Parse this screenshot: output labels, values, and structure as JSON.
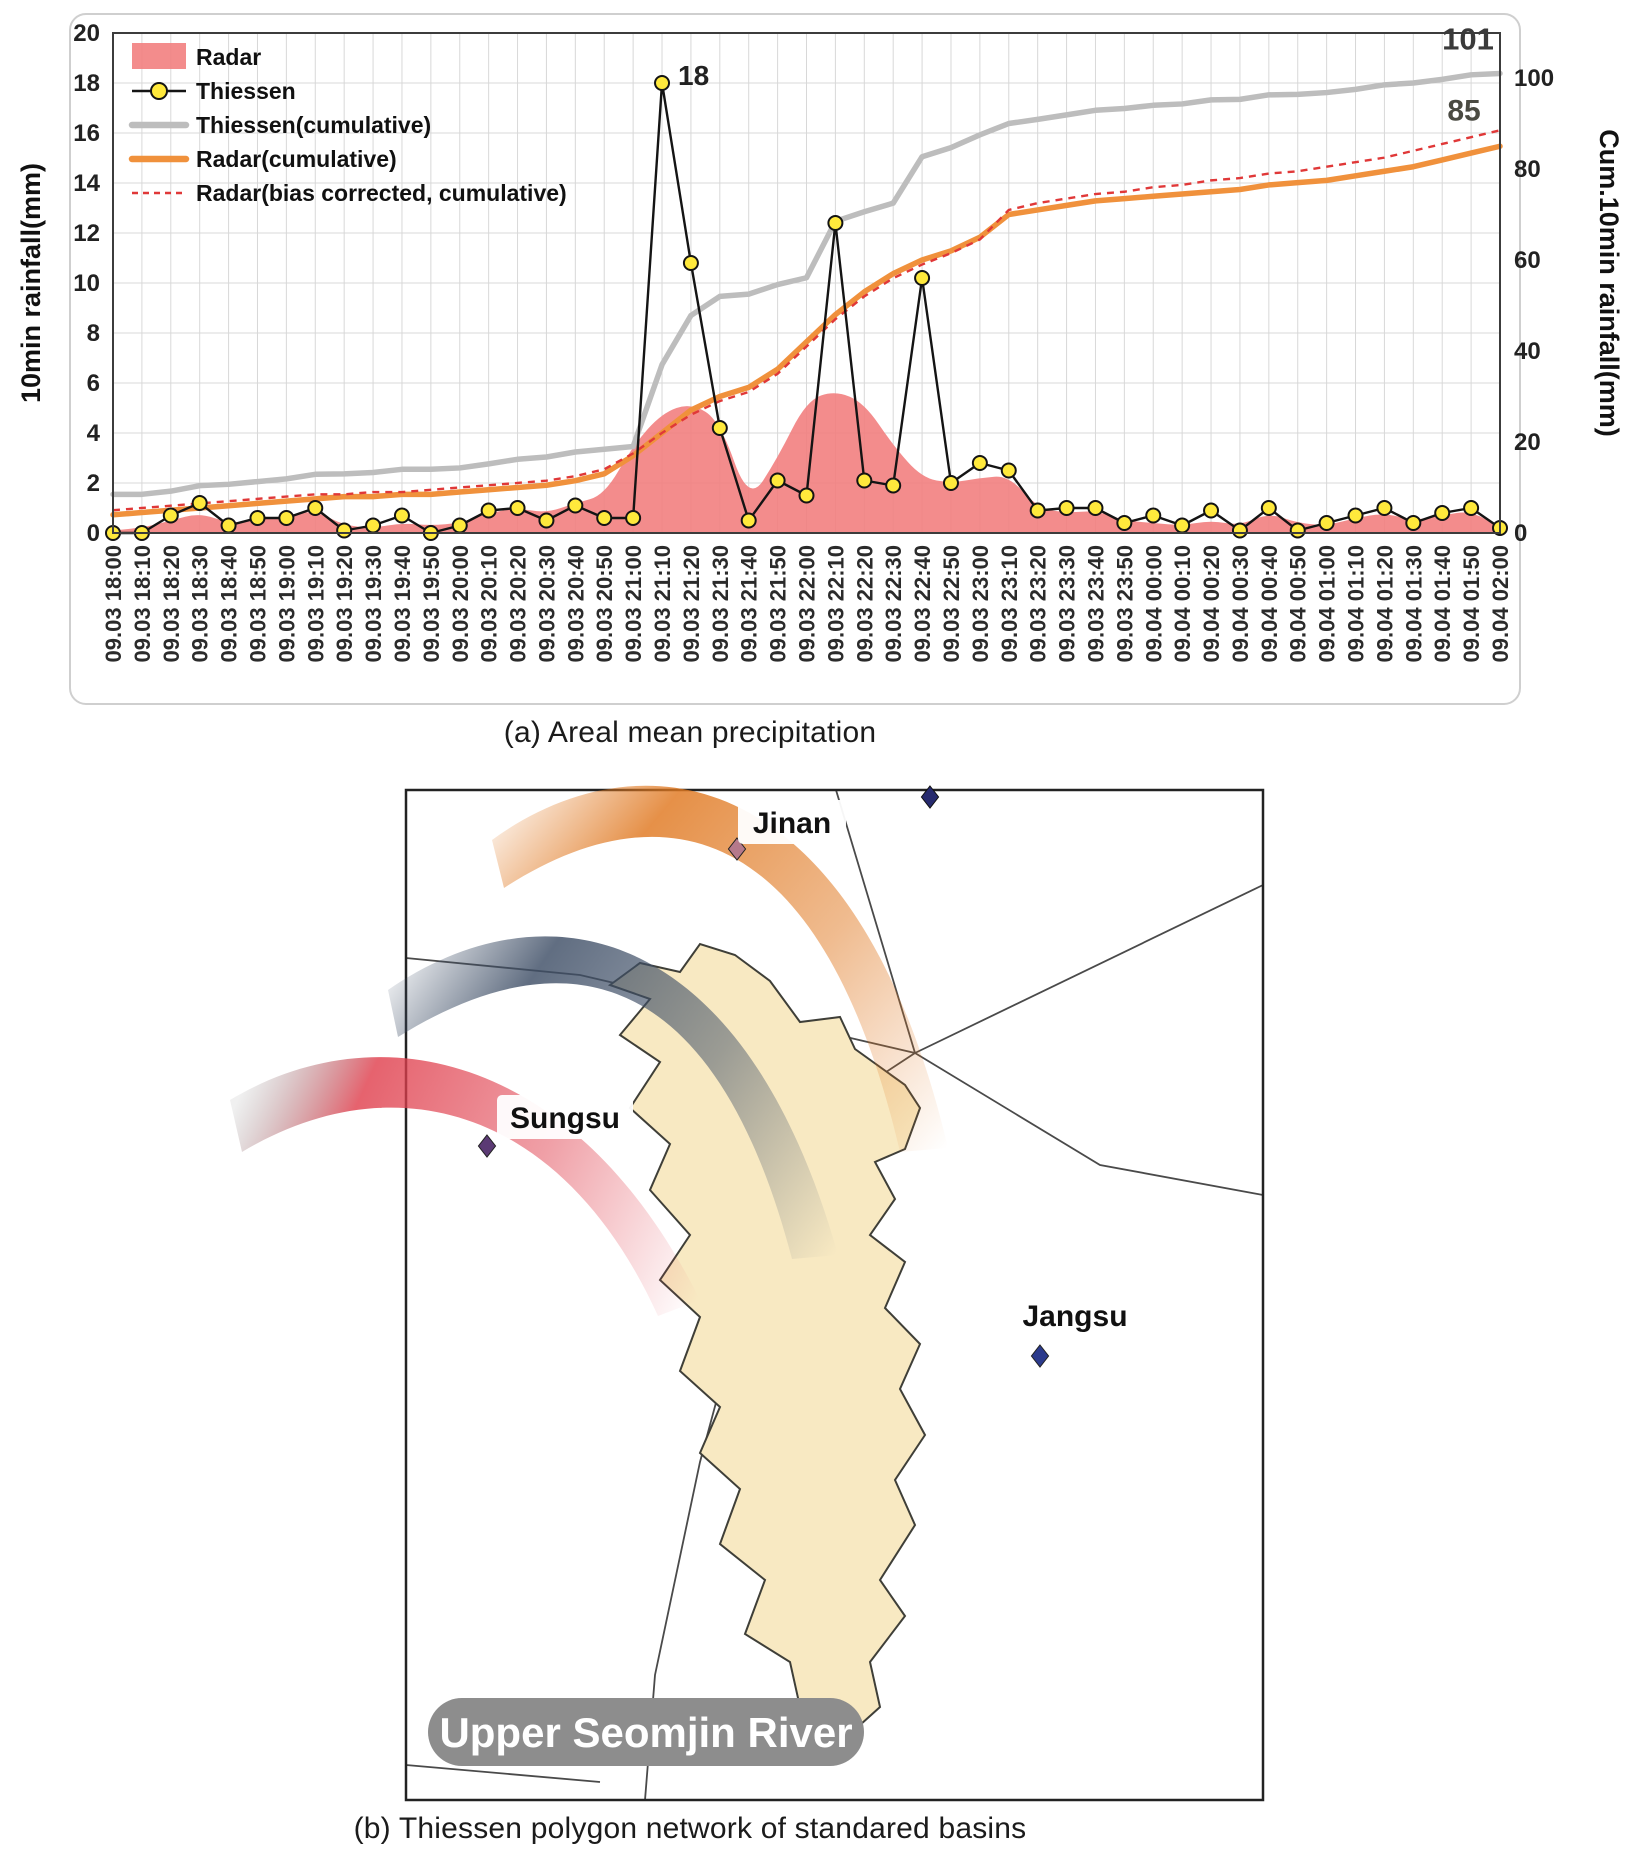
{
  "figure": {
    "caption_a": "(a) Areal mean precipitation",
    "caption_b": "(b) Thiessen polygon network of standared basins"
  },
  "chart_data": {
    "type": "combo",
    "ylabel_left": "10min rainfall(mm)",
    "ylabel_right": "Cum.10min rainfall(mm)",
    "ylim_left": [
      0,
      20
    ],
    "ylim_right": [
      0,
      100
    ],
    "yticks_left": [
      0,
      2,
      4,
      6,
      8,
      10,
      12,
      14,
      16,
      18,
      20
    ],
    "yticks_right": [
      0,
      20,
      40,
      60,
      80,
      100
    ],
    "grid": true,
    "legend_position": "upper-left",
    "categories": [
      "09.03 18:00",
      "09.03 18:10",
      "09.03 18:20",
      "09.03 18:30",
      "09.03 18:40",
      "09.03 18:50",
      "09.03 19:00",
      "09.03 19:10",
      "09.03 19:20",
      "09.03 19:30",
      "09.03 19:40",
      "09.03 19:50",
      "09.03 20:00",
      "09.03 20:10",
      "09.03 20:20",
      "09.03 20:30",
      "09.03 20:40",
      "09.03 20:50",
      "09.03 21:00",
      "09.03 21:10",
      "09.03 21:20",
      "09.03 21:30",
      "09.03 21:40",
      "09.03 21:50",
      "09.03 22:00",
      "09.03 22:10",
      "09.03 22:20",
      "09.03 22:30",
      "09.03 22:40",
      "09.03 22:50",
      "09.03 23:00",
      "09.03 23:10",
      "09.03 23:20",
      "09.03 23:30",
      "09.03 23:40",
      "09.03 23:50",
      "09.04 00:00",
      "09.04 00:10",
      "09.04 00:20",
      "09.04 00:30",
      "09.04 00:40",
      "09.04 00:50",
      "09.04 01:00",
      "09.04 01:10",
      "09.04 01:20",
      "09.04 01:30",
      "09.04 01:40",
      "09.04 01:50",
      "09.04 02:00"
    ],
    "series": [
      {
        "name": "Radar",
        "kind": "area",
        "axis": "left",
        "color": "#f28080",
        "values": [
          0.1,
          0.2,
          0.5,
          0.8,
          0.4,
          0.5,
          0.7,
          0.9,
          0.3,
          0.2,
          0.4,
          0.3,
          0.4,
          0.8,
          1.0,
          0.8,
          1.2,
          1.5,
          3.5,
          4.8,
          5.2,
          4.5,
          1.2,
          3.0,
          5.3,
          5.7,
          5.2,
          3.5,
          2.2,
          2.0,
          2.2,
          2.3,
          1.0,
          0.8,
          0.9,
          0.5,
          0.4,
          0.3,
          0.5,
          0.3,
          0.8,
          0.4,
          0.3,
          0.6,
          0.8,
          0.5,
          0.7,
          0.9,
          0.2
        ]
      },
      {
        "name": "Thiessen",
        "kind": "marker-line",
        "axis": "left",
        "color": "#141414",
        "marker_color": "#ffe93c",
        "values": [
          0,
          0,
          0.7,
          1.2,
          0.3,
          0.6,
          0.6,
          1.0,
          0.1,
          0.3,
          0.7,
          0,
          0.3,
          0.9,
          1.0,
          0.5,
          1.1,
          0.6,
          0.6,
          18,
          10.8,
          4.2,
          0.5,
          2.1,
          1.5,
          12.4,
          2.1,
          1.9,
          10.2,
          2.0,
          2.8,
          2.5,
          0.9,
          1.0,
          1.0,
          0.4,
          0.7,
          0.3,
          0.9,
          0.1,
          1.0,
          0.1,
          0.4,
          0.7,
          1.0,
          0.4,
          0.8,
          1.0,
          0.2
        ]
      },
      {
        "name": "Thiessen(cumulative)",
        "kind": "thick-line",
        "axis": "right",
        "color": "#bdbdbd",
        "values": [
          8.5,
          8.5,
          9.2,
          10.4,
          10.7,
          11.3,
          11.9,
          12.9,
          13.0,
          13.3,
          14.0,
          14.0,
          14.3,
          15.2,
          16.2,
          16.7,
          17.8,
          18.4,
          19.0,
          37.0,
          47.8,
          52.0,
          52.5,
          54.6,
          56.1,
          68.5,
          70.6,
          72.5,
          82.7,
          84.7,
          87.5,
          90.0,
          90.9,
          91.9,
          92.9,
          93.3,
          94.0,
          94.3,
          95.2,
          95.3,
          96.3,
          96.4,
          96.8,
          97.5,
          98.5,
          98.9,
          99.7,
          100.7,
          101
        ]
      },
      {
        "name": "Radar(cumulative)",
        "kind": "thick-line",
        "axis": "right",
        "color": "#f0913c",
        "values": [
          4,
          4.5,
          5,
          5.5,
          6,
          6.5,
          7,
          7.5,
          8,
          8,
          8.5,
          8.5,
          9,
          9.5,
          10,
          10.5,
          11.5,
          13,
          17,
          22,
          27,
          30,
          32,
          36,
          42,
          48,
          53,
          57,
          60,
          62,
          65,
          70,
          71,
          72,
          73,
          73.5,
          74,
          74.5,
          75,
          75.5,
          76.5,
          77,
          77.5,
          78.5,
          79.5,
          80.5,
          82,
          83.5,
          85
        ]
      },
      {
        "name": "Radar(bias corrected, cumulative)",
        "kind": "dashed-line",
        "axis": "right",
        "color": "#e03838",
        "values": [
          5,
          5.5,
          6,
          6.5,
          7,
          7.5,
          8,
          8.5,
          8.5,
          9,
          9,
          9.5,
          10,
          10.5,
          11,
          11.5,
          12.5,
          14,
          17.5,
          22,
          26,
          29,
          31,
          35,
          41,
          47,
          52,
          56,
          59,
          61.5,
          64.5,
          71,
          72.5,
          73.5,
          74.5,
          75,
          76,
          76.5,
          77.5,
          78,
          79,
          79.5,
          80.5,
          81.5,
          82.5,
          84,
          85.5,
          87,
          88.5
        ]
      }
    ],
    "annotations": [
      {
        "text": "18",
        "anchor": "thiessen-peak"
      },
      {
        "text": "101",
        "anchor": "thiessen-cumulative-end"
      },
      {
        "text": "85",
        "anchor": "radar-cumulative-end"
      }
    ]
  },
  "map": {
    "badge_label": "Upper Seomjin River",
    "badge_bg": "#8d8d8d",
    "watershed_fill": "#f8e9c2",
    "stations": [
      {
        "name": "Jinan",
        "marker_color": "#b5798b"
      },
      {
        "name": "Sungsu",
        "marker_color": "#5b3a74"
      },
      {
        "name": "Jangsu",
        "marker_color": "#2b3a8c"
      }
    ],
    "unlabeled_marker_color": "#262a6e",
    "swath_colors": {
      "north": "#e07820",
      "center": "#3e4e66",
      "west": "#e0404e"
    }
  }
}
